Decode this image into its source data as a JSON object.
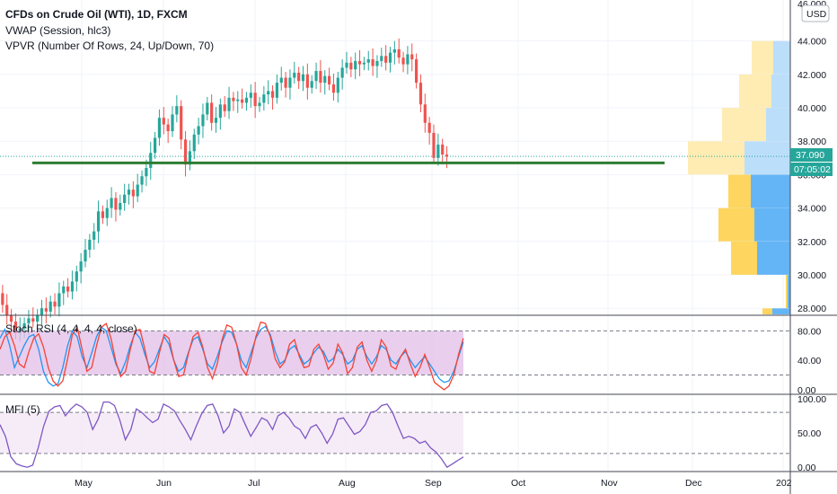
{
  "header": {
    "title": "CFDs on Crude Oil (WTI), 1D, FXCM",
    "indicator_1": "VWAP (Session, hlc3)",
    "indicator_2": "VPVR (Number Of Rows, 24, Up/Down, 70)",
    "currency_button": "USD"
  },
  "price_axis": {
    "ticks": [
      "44.000",
      "42.000",
      "40.000",
      "38.000",
      "36.000",
      "34.000",
      "32.000",
      "30.000",
      "28.000"
    ],
    "top_partial": "46.000",
    "current_price": "37.090",
    "countdown": "07:05:02"
  },
  "rsi_pane": {
    "title": "Stoch RSI (4, 4, 4, 4, close)",
    "ticks": [
      "80.00",
      "40.00",
      "0.00"
    ]
  },
  "mfi_pane": {
    "title": "MFI (5)",
    "ticks": [
      "100.00",
      "50.00",
      "0.00"
    ]
  },
  "time_axis": {
    "labels": [
      "May",
      "Jun",
      "Jul",
      "Aug",
      "Sep",
      "Oct",
      "Nov",
      "Dec",
      "202"
    ]
  },
  "colors": {
    "up": "#26a69a",
    "down": "#ef5350",
    "support_line": "#2e7d32",
    "stoch_k": "#2196f3",
    "stoch_d": "#f44336",
    "mfi": "#7e57c2",
    "rsi_band": "#e1bee7",
    "mfi_band": "#f3e5f5",
    "vp_up": "#64b5f6",
    "vp_down": "#fdd55f",
    "vp_up_faded": "#bbdefb",
    "vp_down_faded": "#ffecb3",
    "price_label": "#26a69a"
  },
  "chart_data": [
    {
      "type": "candlestick",
      "title": "CFDs on Crude Oil (WTI), 1D, FXCM",
      "ylim": [
        27.5,
        46.5
      ],
      "price_close": 37.09,
      "support_level": 36.7,
      "ohlc_path": [
        28.9,
        28.2,
        27.6,
        27.2,
        26.5,
        26.8,
        27.1,
        27.4,
        27.2,
        27.6,
        28.0,
        27.8,
        28.4,
        28.1,
        28.9,
        29.3,
        29.0,
        29.6,
        30.2,
        30.8,
        31.5,
        32.1,
        32.6,
        33.8,
        33.4,
        34.0,
        34.6,
        33.9,
        34.3,
        34.8,
        35.1,
        34.7,
        35.4,
        35.9,
        36.4,
        37.3,
        38.2,
        39.4,
        39.0,
        38.6,
        39.6,
        40.1,
        38.1,
        36.6,
        37.4,
        38.4,
        38.9,
        39.6,
        40.3,
        39.1,
        39.4,
        40.2,
        39.8,
        40.6,
        40.4,
        40.5,
        40.3,
        40.6,
        40.9,
        40.1,
        40.3,
        40.8,
        41.0,
        40.6,
        41.5,
        41.8,
        41.2,
        41.8,
        42.1,
        41.6,
        42.0,
        41.2,
        41.6,
        42.2,
        41.5,
        41.9,
        41.4,
        40.9,
        41.8,
        42.4,
        42.7,
        42.3,
        42.8,
        42.6,
        42.7,
        42.9,
        42.5,
        42.8,
        43.1,
        42.7,
        43.3,
        43.5,
        43.0,
        42.6,
        43.2,
        42.9,
        41.5,
        40.2,
        39.1,
        38.5,
        37.0,
        37.8,
        37.2,
        37.1
      ],
      "volume_profile": [
        {
          "price": 43.0,
          "up": 19,
          "down": 24
        },
        {
          "price": 41.0,
          "up": 21,
          "down": 36
        },
        {
          "price": 39.0,
          "up": 27,
          "down": 49
        },
        {
          "price": 37.0,
          "up": 51,
          "down": 63
        },
        {
          "price": 35.0,
          "up": 44,
          "down": 25
        },
        {
          "price": 33.0,
          "up": 40,
          "down": 40
        },
        {
          "price": 31.0,
          "up": 37,
          "down": 29
        },
        {
          "price": 29.0,
          "up": 3,
          "down": 2
        },
        {
          "price": 27.0,
          "up": 20,
          "down": 11
        }
      ]
    },
    {
      "type": "line",
      "title": "Stoch RSI (4, 4, 4, 4, close)",
      "ylim": [
        -5,
        100
      ],
      "bands": [
        20,
        80
      ],
      "series": [
        {
          "values": [
            70,
            82,
            60,
            30,
            45,
            60,
            72,
            75,
            55,
            25,
            10,
            5,
            8,
            30,
            60,
            80,
            72,
            45,
            30,
            50,
            72,
            85,
            80,
            58,
            35,
            22,
            38,
            60,
            78,
            70,
            48,
            30,
            38,
            55,
            72,
            62,
            40,
            25,
            30,
            50,
            68,
            72,
            55,
            35,
            28,
            45,
            65,
            80,
            78,
            62,
            40,
            30,
            50,
            70,
            82,
            86,
            75,
            52,
            35,
            40,
            55,
            60,
            48,
            35,
            40,
            50,
            58,
            52,
            38,
            42,
            55,
            48,
            35,
            40,
            55,
            60,
            45,
            35,
            45,
            60,
            55,
            40,
            35,
            45,
            52,
            40,
            30,
            38,
            45,
            35,
            25,
            15,
            10,
            12,
            25,
            45,
            65
          ]
        },
        {
          "values": [
            55,
            72,
            78,
            60,
            35,
            30,
            52,
            70,
            76,
            58,
            30,
            12,
            5,
            12,
            42,
            75,
            85,
            55,
            25,
            30,
            60,
            85,
            90,
            70,
            38,
            18,
            25,
            55,
            80,
            82,
            55,
            25,
            22,
            50,
            75,
            70,
            40,
            18,
            20,
            48,
            72,
            78,
            58,
            30,
            15,
            35,
            68,
            88,
            85,
            62,
            30,
            20,
            42,
            72,
            92,
            90,
            72,
            42,
            30,
            38,
            62,
            68,
            45,
            30,
            32,
            55,
            62,
            48,
            28,
            36,
            62,
            50,
            22,
            30,
            58,
            65,
            40,
            25,
            40,
            68,
            58,
            32,
            28,
            45,
            55,
            35,
            18,
            30,
            48,
            30,
            10,
            5,
            0,
            5,
            20,
            48,
            70
          ]
        }
      ]
    },
    {
      "type": "line",
      "title": "MFI (5)",
      "ylim": [
        -5,
        105
      ],
      "bands": [
        20,
        80
      ],
      "series": [
        {
          "values": [
            62,
            45,
            15,
            5,
            2,
            0,
            3,
            28,
            60,
            82,
            88,
            90,
            75,
            85,
            92,
            88,
            80,
            55,
            70,
            95,
            95,
            90,
            68,
            40,
            55,
            85,
            80,
            72,
            65,
            70,
            92,
            88,
            82,
            68,
            55,
            40,
            60,
            78,
            90,
            92,
            75,
            50,
            60,
            85,
            80,
            62,
            45,
            58,
            72,
            68,
            55,
            75,
            80,
            72,
            60,
            55,
            42,
            58,
            62,
            50,
            35,
            48,
            70,
            72,
            60,
            48,
            52,
            62,
            80,
            82,
            90,
            92,
            80,
            60,
            42,
            45,
            42,
            35,
            38,
            28,
            22,
            12,
            0,
            5,
            10,
            15
          ]
        }
      ]
    }
  ]
}
